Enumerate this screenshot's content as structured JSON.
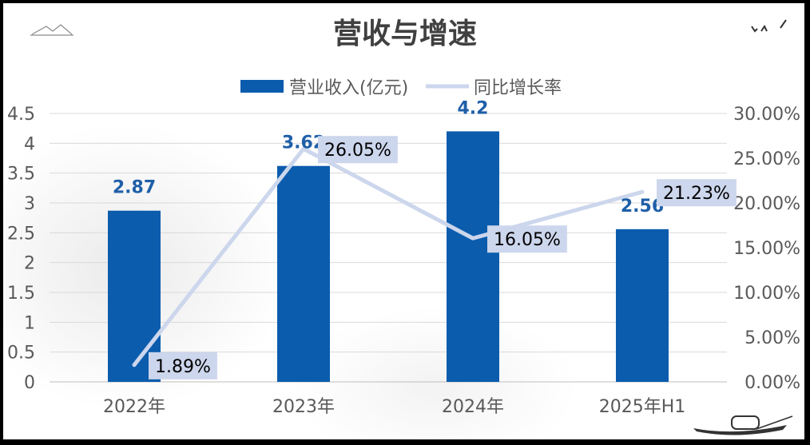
{
  "chart_data": {
    "type": "bar",
    "title": "营收与增速",
    "categories": [
      "2022年",
      "2023年",
      "2024年",
      "2025年H1"
    ],
    "series": [
      {
        "name": "营业收入(亿元)",
        "type": "bar",
        "axis": "left",
        "color": "#0B5CAD",
        "values": [
          2.87,
          3.62,
          4.2,
          2.56
        ],
        "labels": [
          "2.87",
          "3.62",
          "4.2",
          "2.56"
        ]
      },
      {
        "name": "同比增长率",
        "type": "line",
        "axis": "right",
        "color": "#CCD6EC",
        "values": [
          1.89,
          26.05,
          16.05,
          21.23
        ],
        "labels": [
          "1.89%",
          "26.05%",
          "16.05%",
          "21.23%"
        ]
      }
    ],
    "y_left": {
      "range": [
        0,
        4.5
      ],
      "ticks": [
        "0",
        "0.5",
        "1",
        "1.5",
        "2",
        "2.5",
        "3",
        "3.5",
        "4",
        "4.5"
      ]
    },
    "y_right": {
      "range": [
        0,
        30
      ],
      "ticks": [
        "0.00%",
        "5.00%",
        "10.00%",
        "15.00%",
        "20.00%",
        "25.00%",
        "30.00%"
      ]
    },
    "grid": true,
    "legend": "top"
  }
}
